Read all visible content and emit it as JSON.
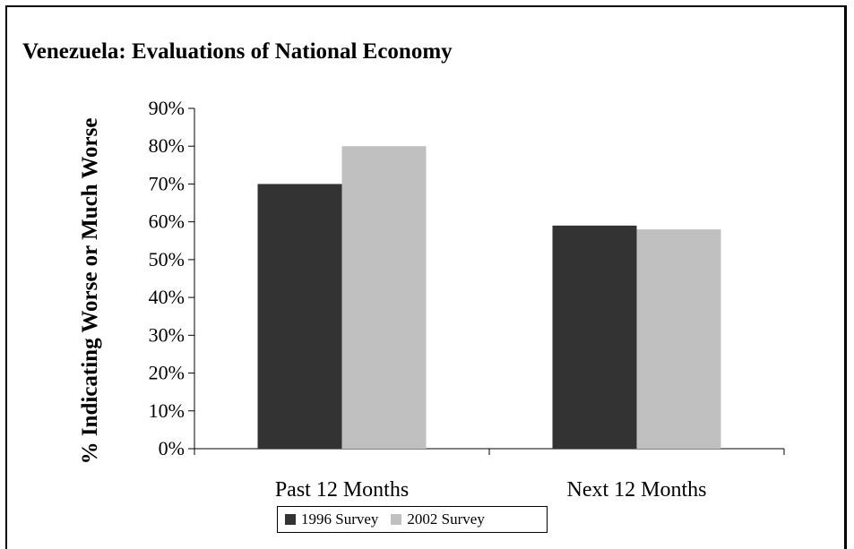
{
  "chart_data": {
    "type": "bar",
    "title": "Venezuela: Evaluations of National Economy",
    "ylabel": "% Indicating Worse or Much Worse",
    "xlabel": "",
    "categories": [
      "Past 12 Months",
      "Next 12 Months"
    ],
    "series": [
      {
        "name": "1996 Survey",
        "color": "#333333",
        "values": [
          70,
          59
        ]
      },
      {
        "name": "2002 Survey",
        "color": "#c0c0c0",
        "values": [
          80,
          58
        ]
      }
    ],
    "ylim": [
      0,
      90
    ],
    "yticks": [
      0,
      10,
      20,
      30,
      40,
      50,
      60,
      70,
      80,
      90
    ],
    "ytick_labels": [
      "0%",
      "10%",
      "20%",
      "30%",
      "40%",
      "50%",
      "60%",
      "70%",
      "80%",
      "90%"
    ],
    "grid": false,
    "legend_position": "bottom"
  }
}
